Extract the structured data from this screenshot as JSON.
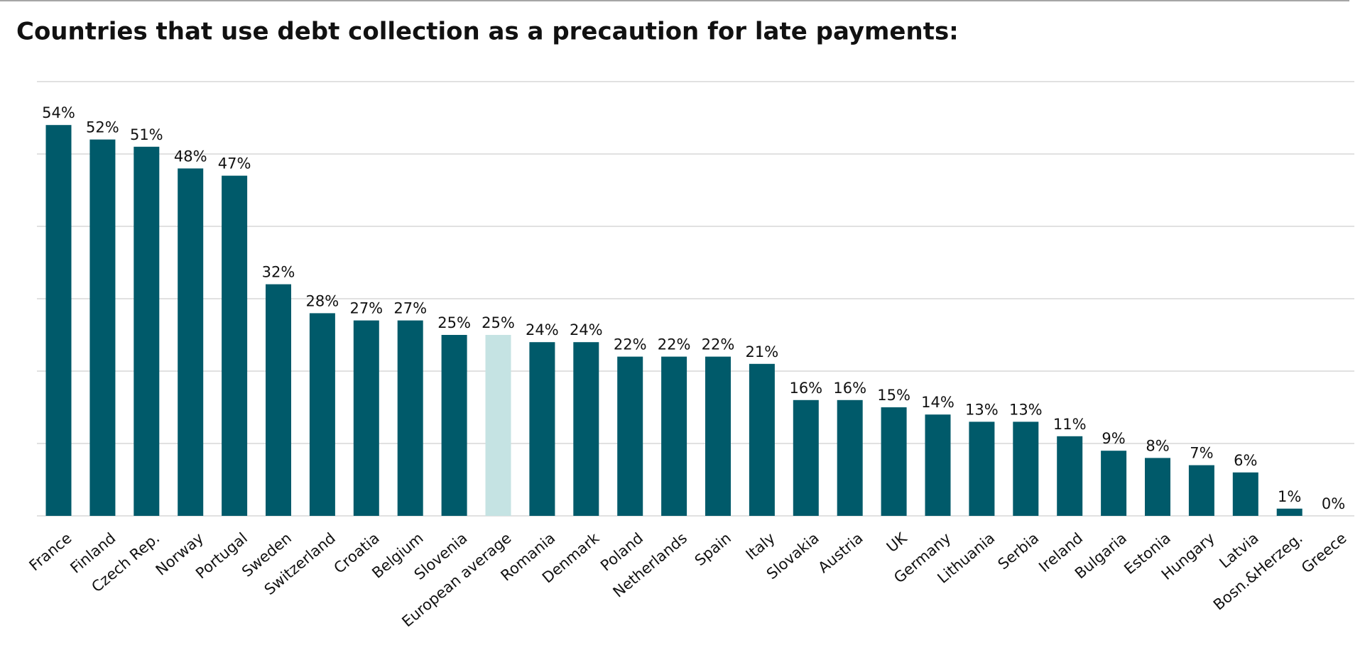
{
  "chart_data": {
    "type": "bar",
    "title": "Countries that use debt collection as a precaution for late payments:",
    "categories": [
      "France",
      "Finland",
      "Czech Rep.",
      "Norway",
      "Portugal",
      "Sweden",
      "Switzerland",
      "Croatia",
      "Belgium",
      "Slovenia",
      "European average",
      "Romania",
      "Denmark",
      "Poland",
      "Netherlands",
      "Spain",
      "Italy",
      "Slovakia",
      "Austria",
      "UK",
      "Germany",
      "Lithuania",
      "Serbia",
      "Ireland",
      "Bulgaria",
      "Estonia",
      "Hungary",
      "Latvia",
      "Bosn.&Herzeg.",
      "Greece"
    ],
    "values": [
      54,
      52,
      51,
      48,
      47,
      32,
      28,
      27,
      27,
      25,
      25,
      24,
      24,
      22,
      22,
      22,
      21,
      16,
      16,
      15,
      14,
      13,
      13,
      11,
      9,
      8,
      7,
      6,
      1,
      0
    ],
    "value_labels": [
      "54%",
      "52%",
      "51%",
      "48%",
      "47%",
      "32%",
      "28%",
      "27%",
      "27%",
      "25%",
      "25%",
      "24%",
      "24%",
      "22%",
      "22%",
      "22%",
      "21%",
      "16%",
      "16%",
      "15%",
      "14%",
      "13%",
      "13%",
      "11%",
      "9%",
      "8%",
      "7%",
      "6%",
      "1%",
      "0%"
    ],
    "colors": [
      "#005a6a",
      "#005a6a",
      "#005a6a",
      "#005a6a",
      "#005a6a",
      "#005a6a",
      "#005a6a",
      "#005a6a",
      "#005a6a",
      "#005a6a",
      "#c5e3e3",
      "#005a6a",
      "#005a6a",
      "#005a6a",
      "#005a6a",
      "#005a6a",
      "#005a6a",
      "#005a6a",
      "#005a6a",
      "#005a6a",
      "#005a6a",
      "#005a6a",
      "#005a6a",
      "#005a6a",
      "#005a6a",
      "#005a6a",
      "#005a6a",
      "#005a6a",
      "#005a6a",
      "#005a6a"
    ],
    "ylim": [
      0,
      60
    ],
    "yticks": [
      0,
      10,
      20,
      30,
      40,
      50,
      60
    ],
    "grid": true
  }
}
